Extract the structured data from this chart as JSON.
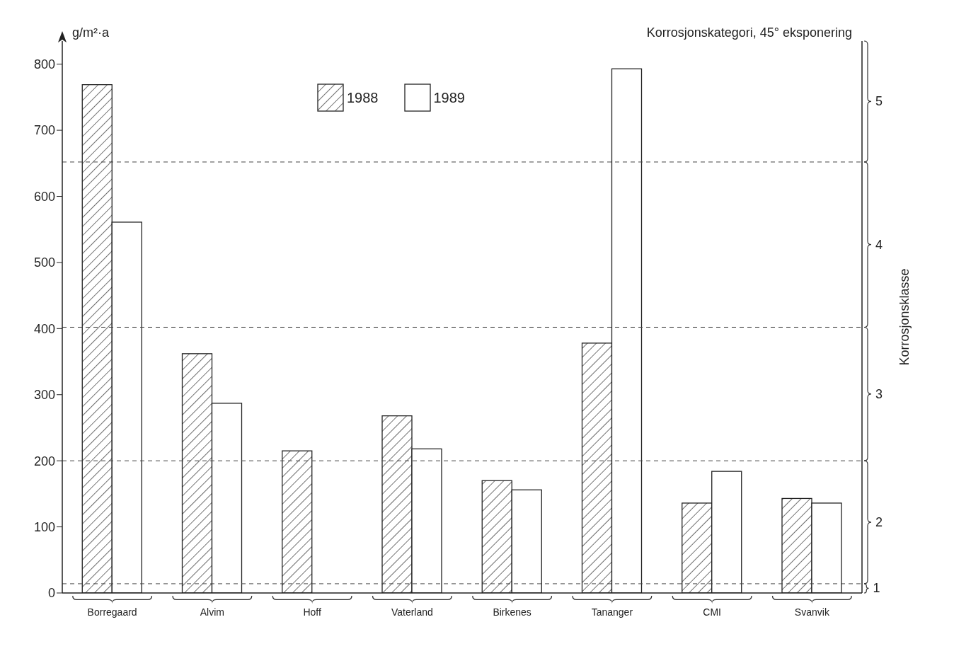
{
  "chart_data": {
    "type": "bar",
    "title": "Korrosjonskategori, 45° eksponering",
    "ylabel": "g/m²·a",
    "y2label": "Korrosjonsklasse",
    "categories": [
      "Borregaard",
      "Alvim",
      "Hoff",
      "Vaterland",
      "Birkenes",
      "Tananger",
      "CMI",
      "Svanvik"
    ],
    "series": [
      {
        "name": "1988",
        "color": "#222222",
        "values": [
          769,
          362,
          215,
          268,
          170,
          378,
          136,
          143
        ]
      },
      {
        "name": "1989",
        "color": "#ffffff",
        "values": [
          561,
          287,
          null,
          218,
          156,
          793,
          184,
          136
        ]
      }
    ],
    "ylim": [
      0,
      835
    ],
    "yticks": [
      0,
      100,
      200,
      300,
      400,
      500,
      600,
      700,
      800
    ],
    "annotations": [
      "1",
      "2",
      "3",
      "4",
      "5"
    ],
    "ref_lines": [
      {
        "axis": "y",
        "value": 652,
        "line_style": "dashed"
      },
      {
        "axis": "y",
        "value": 402,
        "line_style": "dashed"
      },
      {
        "axis": "y",
        "value": 200,
        "line_style": "dashed"
      },
      {
        "axis": "y",
        "value": 14,
        "line_style": "dashed"
      }
    ],
    "grid": false,
    "legend": "top"
  }
}
